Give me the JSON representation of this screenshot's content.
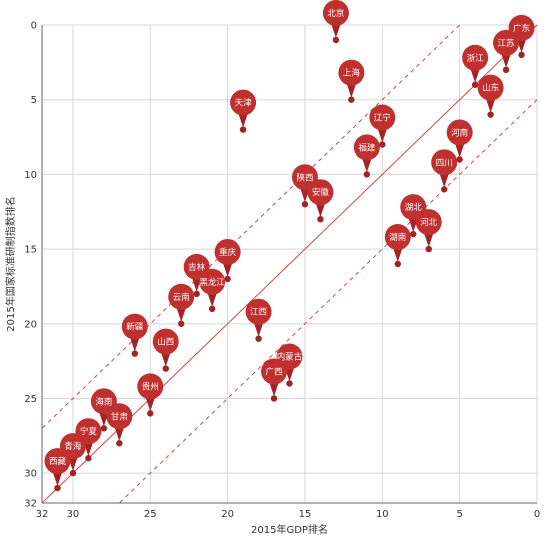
{
  "chart_data": {
    "type": "scatter",
    "xlabel": "2015年GDP排名",
    "ylabel": "2015年国家标准研制指数排名",
    "xlim": [
      32,
      0
    ],
    "ylim": [
      0,
      32
    ],
    "x_ticks": [
      32,
      30,
      25,
      20,
      15,
      10,
      5,
      0
    ],
    "y_ticks": [
      0,
      5,
      10,
      15,
      20,
      25,
      30,
      32
    ],
    "grid": true,
    "reference_lines": [
      {
        "style": "solid",
        "offset": 0
      },
      {
        "style": "dashed",
        "offset": -5
      },
      {
        "style": "dashed",
        "offset": 5
      }
    ],
    "colors": {
      "marker": "#c0302f",
      "marker_dark": "#a02424",
      "line": "#d0493f",
      "grid": "#d8d8d8",
      "axis": "#666666"
    },
    "points": [
      {
        "name": "北京",
        "x": 13,
        "y": 1
      },
      {
        "name": "广东",
        "x": 1,
        "y": 2
      },
      {
        "name": "江苏",
        "x": 2,
        "y": 3
      },
      {
        "name": "浙江",
        "x": 4,
        "y": 4
      },
      {
        "name": "上海",
        "x": 12,
        "y": 5
      },
      {
        "name": "山东",
        "x": 3,
        "y": 6
      },
      {
        "name": "天津",
        "x": 19,
        "y": 7
      },
      {
        "name": "辽宁",
        "x": 10,
        "y": 8
      },
      {
        "name": "河南",
        "x": 5,
        "y": 9
      },
      {
        "name": "福建",
        "x": 11,
        "y": 10
      },
      {
        "name": "四川",
        "x": 6,
        "y": 11
      },
      {
        "name": "陕西",
        "x": 15,
        "y": 12
      },
      {
        "name": "安徽",
        "x": 14,
        "y": 13
      },
      {
        "name": "湖北",
        "x": 8,
        "y": 14
      },
      {
        "name": "河北",
        "x": 7,
        "y": 15
      },
      {
        "name": "湖南",
        "x": 9,
        "y": 16
      },
      {
        "name": "重庆",
        "x": 20,
        "y": 17
      },
      {
        "name": "吉林",
        "x": 22,
        "y": 18
      },
      {
        "name": "黑龙江",
        "x": 21,
        "y": 19
      },
      {
        "name": "云南",
        "x": 23,
        "y": 20
      },
      {
        "name": "江西",
        "x": 18,
        "y": 21
      },
      {
        "name": "新疆",
        "x": 26,
        "y": 22
      },
      {
        "name": "山西",
        "x": 24,
        "y": 23
      },
      {
        "name": "内蒙古",
        "x": 16,
        "y": 24
      },
      {
        "name": "广西",
        "x": 17,
        "y": 25
      },
      {
        "name": "贵州",
        "x": 25,
        "y": 26
      },
      {
        "name": "海南",
        "x": 28,
        "y": 27
      },
      {
        "name": "甘肃",
        "x": 27,
        "y": 28
      },
      {
        "name": "宁夏",
        "x": 29,
        "y": 29
      },
      {
        "name": "青海",
        "x": 30,
        "y": 30
      },
      {
        "name": "西藏",
        "x": 31,
        "y": 31
      }
    ]
  }
}
